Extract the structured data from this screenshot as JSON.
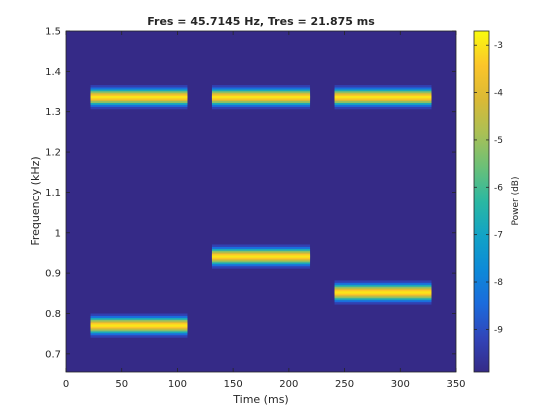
{
  "chart_data": {
    "type": "heatmap",
    "title": "Fres = 45.7145 Hz, Tres = 21.875 ms",
    "xlabel": "Time (ms)",
    "ylabel": "Frequency (kHz)",
    "xlim": [
      0,
      350
    ],
    "ylim": [
      0.655,
      1.5
    ],
    "x_ticks": [
      0,
      50,
      100,
      150,
      200,
      250,
      300,
      350
    ],
    "y_ticks": [
      0.7,
      0.8,
      0.9,
      1.0,
      1.1,
      1.2,
      1.3,
      1.4,
      1.5
    ],
    "y_tick_labels": [
      "0.7",
      "0.8",
      "0.9",
      "1",
      "1.1",
      "1.2",
      "1.3",
      "1.4",
      "1.5"
    ],
    "colorbar": {
      "label": "Power (dB)",
      "range": [
        -9.9,
        -2.7
      ],
      "ticks": [
        -9,
        -8,
        -7,
        -6,
        -5,
        -4,
        -3
      ],
      "tick_labels": [
        "-9",
        "-8",
        "-7",
        "-6",
        "-5",
        "-4",
        "-3"
      ],
      "colormap": "parula"
    },
    "background_level_db": -9.9,
    "tones": [
      {
        "t_start": 22,
        "t_end": 109,
        "freq_khz": 1.336,
        "peak_db": -3.0
      },
      {
        "t_start": 22,
        "t_end": 109,
        "freq_khz": 0.77,
        "peak_db": -3.0
      },
      {
        "t_start": 131,
        "t_end": 219,
        "freq_khz": 1.336,
        "peak_db": -3.0
      },
      {
        "t_start": 131,
        "t_end": 219,
        "freq_khz": 0.941,
        "peak_db": -3.0
      },
      {
        "t_start": 241,
        "t_end": 328,
        "freq_khz": 1.336,
        "peak_db": -3.0
      },
      {
        "t_start": 241,
        "t_end": 328,
        "freq_khz": 0.852,
        "peak_db": -3.0
      }
    ]
  }
}
